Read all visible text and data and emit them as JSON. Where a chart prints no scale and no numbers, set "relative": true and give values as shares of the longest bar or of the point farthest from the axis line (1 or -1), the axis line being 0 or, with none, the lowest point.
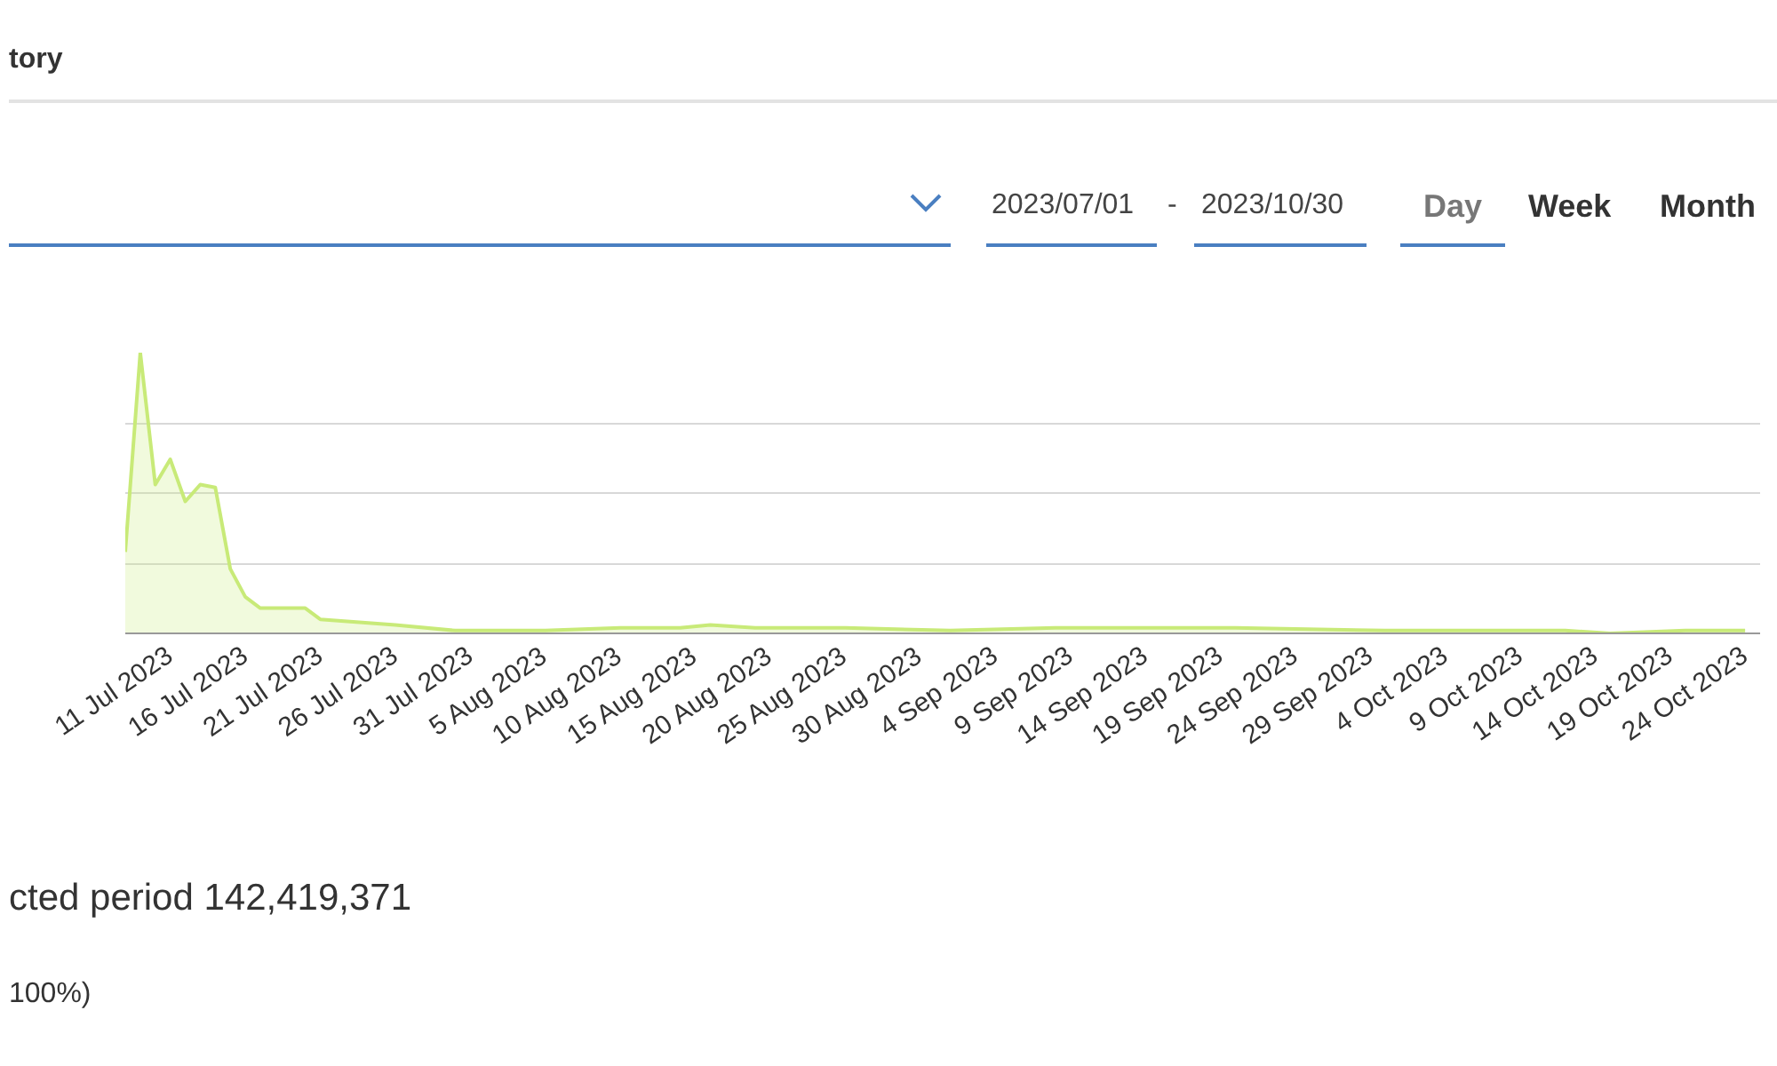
{
  "chart_data": {
    "type": "area",
    "title": "tory",
    "relative": true,
    "grid": "y",
    "color": "#c8ea78",
    "x": [
      "2023-07-08",
      "2023-07-09",
      "2023-07-10",
      "2023-07-11",
      "2023-07-12",
      "2023-07-13",
      "2023-07-14",
      "2023-07-15",
      "2023-07-16",
      "2023-07-17",
      "2023-07-20",
      "2023-07-21",
      "2023-07-26",
      "2023-07-30",
      "2023-08-05",
      "2023-08-10",
      "2023-08-14",
      "2023-08-16",
      "2023-08-19",
      "2023-08-25",
      "2023-09-01",
      "2023-09-08",
      "2023-09-12",
      "2023-09-20",
      "2023-09-30",
      "2023-10-05",
      "2023-10-12",
      "2023-10-15",
      "2023-10-20",
      "2023-10-24"
    ],
    "values": [
      0.29,
      1.0,
      0.53,
      0.62,
      0.47,
      0.53,
      0.52,
      0.23,
      0.13,
      0.09,
      0.09,
      0.05,
      0.03,
      0.01,
      0.01,
      0.02,
      0.02,
      0.03,
      0.02,
      0.02,
      0.01,
      0.02,
      0.02,
      0.02,
      0.01,
      0.01,
      0.01,
      0.0,
      0.01,
      0.01
    ],
    "xlim": [
      "2023-07-08",
      "2023-10-25"
    ],
    "xticks": [
      {
        "value": "2023-07-11",
        "label": "11 Jul 2023"
      },
      {
        "value": "2023-07-16",
        "label": "16 Jul 2023"
      },
      {
        "value": "2023-07-21",
        "label": "21 Jul 2023"
      },
      {
        "value": "2023-07-26",
        "label": "26 Jul 2023"
      },
      {
        "value": "2023-07-31",
        "label": "31 Jul 2023"
      },
      {
        "value": "2023-08-05",
        "label": "5 Aug 2023"
      },
      {
        "value": "2023-08-10",
        "label": "10 Aug 2023"
      },
      {
        "value": "2023-08-15",
        "label": "15 Aug 2023"
      },
      {
        "value": "2023-08-20",
        "label": "20 Aug 2023"
      },
      {
        "value": "2023-08-25",
        "label": "25 Aug 2023"
      },
      {
        "value": "2023-08-30",
        "label": "30 Aug 2023"
      },
      {
        "value": "2023-09-04",
        "label": "4 Sep 2023"
      },
      {
        "value": "2023-09-09",
        "label": "9 Sep 2023"
      },
      {
        "value": "2023-09-14",
        "label": "14 Sep 2023"
      },
      {
        "value": "2023-09-19",
        "label": "19 Sep 2023"
      },
      {
        "value": "2023-09-24",
        "label": "24 Sep 2023"
      },
      {
        "value": "2023-09-29",
        "label": "29 Sep 2023"
      },
      {
        "value": "2023-10-04",
        "label": "4 Oct 2023"
      },
      {
        "value": "2023-10-09",
        "label": "9 Oct 2023"
      },
      {
        "value": "2023-10-14",
        "label": "14 Oct 2023"
      },
      {
        "value": "2023-10-19",
        "label": "19 Oct 2023"
      },
      {
        "value": "2023-10-24",
        "label": "24 Oct 2023"
      }
    ],
    "annotations": [
      "2023/07/01",
      "-",
      "2023/10/30",
      "Day",
      "Week",
      "Month",
      "cted period 142,419,371",
      "100%)"
    ]
  }
}
